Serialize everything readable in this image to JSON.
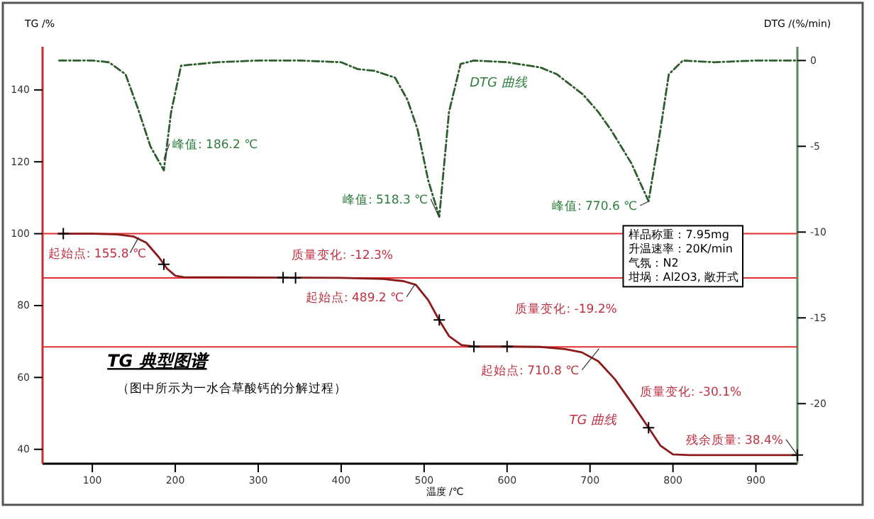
{
  "chart_data": {
    "type": "line",
    "title": "TG 典型图谱",
    "subtitle": "（图中所示为一水合草酸钙的分解过程）",
    "xlabel": "温度 /℃",
    "ylabel": "TG /%",
    "y2label": "DTG /(%/min)",
    "xlim": [
      40,
      950
    ],
    "xticks": [
      100,
      200,
      300,
      400,
      500,
      600,
      700,
      800,
      900
    ],
    "ylim": [
      36,
      152
    ],
    "yticks": [
      40,
      60,
      80,
      100,
      120,
      140
    ],
    "y2lim": [
      -23.5,
      0.8
    ],
    "y2ticks": [
      -20,
      -15,
      -10,
      -5,
      0
    ],
    "series": [
      {
        "color": "#8b1a1a",
        "line_style": "solid",
        "x": [
          60,
          100,
          130,
          150,
          165,
          180,
          190,
          200,
          210,
          300,
          400,
          450,
          475,
          490,
          505,
          518,
          530,
          545,
          560,
          600,
          640,
          670,
          690,
          710,
          730,
          750,
          770.6,
          785,
          800,
          820,
          950
        ],
        "values": [
          100,
          100,
          99.8,
          99.2,
          97.5,
          93.5,
          90.3,
          88.3,
          87.9,
          87.8,
          87.7,
          87.4,
          86.8,
          85.8,
          81.5,
          76,
          71.5,
          69,
          68.6,
          68.6,
          68.5,
          67.9,
          67,
          64.5,
          59.5,
          53,
          46,
          41,
          38.6,
          38.4,
          38.4
        ]
      },
      {
        "type": "line",
        "axis": "y2",
        "color": "#2e5e2e",
        "line_style": "dashed",
        "x": [
          60,
          100,
          120,
          140,
          155,
          170,
          186.2,
          195,
          207,
          250,
          300,
          350,
          400,
          420,
          440,
          465,
          480,
          492,
          505,
          518.3,
          530,
          544,
          560,
          600,
          640,
          660,
          692,
          710,
          726,
          750,
          770.6,
          785,
          795,
          812,
          850,
          900,
          950
        ],
        "values": [
          0,
          0,
          -0.1,
          -0.8,
          -2.8,
          -5,
          -6.4,
          -3,
          -0.3,
          -0.1,
          0,
          0,
          -0.1,
          -0.5,
          -0.6,
          -1,
          -2.3,
          -4,
          -7,
          -9.1,
          -3,
          -0.2,
          0,
          -0.1,
          -0.4,
          -0.8,
          -2,
          -3,
          -4.1,
          -6,
          -8.2,
          -4,
          -0.8,
          0,
          -0.1,
          0,
          0
        ]
      },
      {
        "type": "scatter",
        "color": "#000000",
        "marker": "cross",
        "x": [
          65,
          186.2,
          330,
          345,
          518.3,
          560,
          600,
          770.6,
          950
        ],
        "values": [
          100,
          91.5,
          87.8,
          87.7,
          76,
          68.6,
          68.6,
          46,
          38.4
        ]
      }
    ],
    "ref_lines": [
      {
        "axis": "y",
        "value": 100,
        "color": "#e03030"
      },
      {
        "axis": "y",
        "value": 87.7,
        "color": "#e03030"
      },
      {
        "axis": "y",
        "value": 68.5,
        "color": "#e03030"
      }
    ],
    "annotations": [
      {
        "text": "峰值: 186.2 ℃",
        "x": 186.2,
        "y": 120.7
      },
      {
        "text": "峰值: 518.3 ℃",
        "x": 518.3,
        "y": 104.5
      },
      {
        "text": "峰值: 770.6 ℃",
        "x": 770.6,
        "y": 109
      },
      "DTG 曲线",
      {
        "text": "起始点: 155.8 ℃",
        "x": 155.8,
        "y": 99
      },
      "质量变化: -12.3%",
      {
        "text": "起始点: 489.2 ℃",
        "x": 489.2,
        "y": 86
      },
      "质量变化: -19.2%",
      {
        "text": "起始点: 710.8 ℃",
        "x": 710.8,
        "y": 68
      },
      "质量变化: -30.1%",
      "TG 曲线",
      {
        "text": "残余质量: 38.4%",
        "x": 950,
        "y": 38.4
      },
      "样品称重：7.95mg",
      "升温速率：20K/min",
      "气氛：N2",
      "坩埚：Al2O3, 敞开式"
    ]
  }
}
